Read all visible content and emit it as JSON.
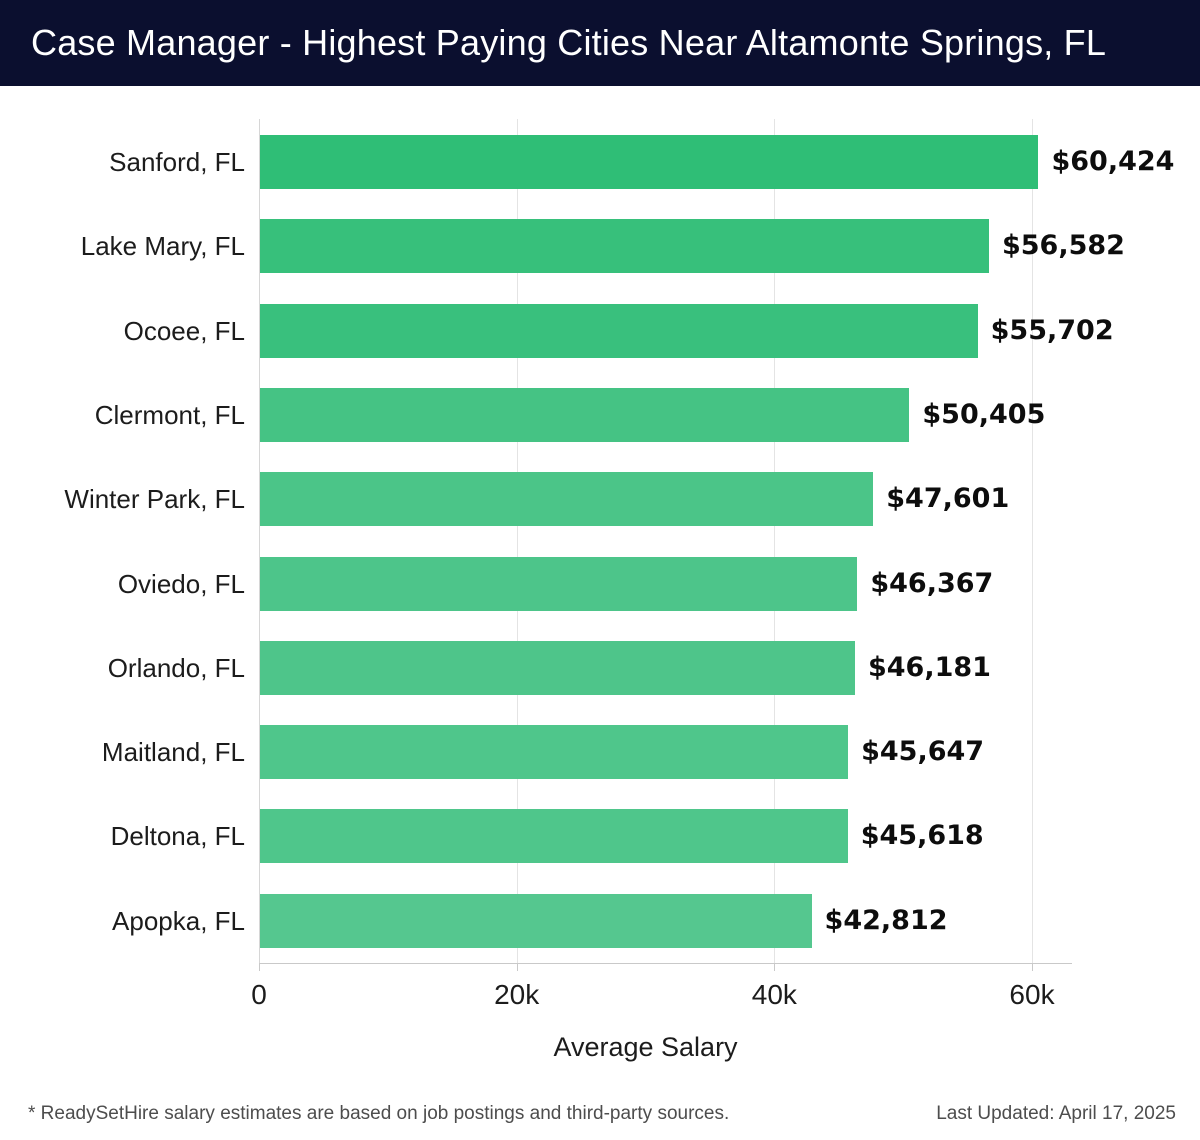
{
  "header": {
    "title": "Case Manager - Highest Paying Cities Near Altamonte Springs, FL"
  },
  "chart_data": {
    "type": "bar",
    "orientation": "horizontal",
    "title": "Case Manager - Highest Paying Cities Near Altamonte Springs, FL",
    "categories": [
      "Sanford, FL",
      "Lake Mary, FL",
      "Ocoee, FL",
      "Clermont, FL",
      "Winter Park, FL",
      "Oviedo, FL",
      "Orlando, FL",
      "Maitland, FL",
      "Deltona, FL",
      "Apopka, FL"
    ],
    "values": [
      60424,
      56582,
      55702,
      50405,
      47601,
      46367,
      46181,
      45647,
      45618,
      42812
    ],
    "value_labels": [
      "$60,424",
      "$56,582",
      "$55,702",
      "$50,405",
      "$47,601",
      "$46,367",
      "$46,181",
      "$45,647",
      "$45,618",
      "$42,812"
    ],
    "bar_colors": [
      "#2fbe76",
      "#37c07b",
      "#39c07d",
      "#45c384",
      "#4bc588",
      "#4dc58a",
      "#4ec58a",
      "#4fc68b",
      "#4fc68b",
      "#55c78f"
    ],
    "xlabel": "Average Salary",
    "ylabel": "",
    "xlim": [
      0,
      63000
    ],
    "x_ticks": [
      {
        "label": "0",
        "value": 0
      },
      {
        "label": "20k",
        "value": 20000
      },
      {
        "label": "40k",
        "value": 40000
      },
      {
        "label": "60k",
        "value": 60000
      }
    ],
    "grid": "vertical-light-gray",
    "legend": "none"
  },
  "colors": {
    "header_bg": "#0b0f2f",
    "header_text": "#ffffff",
    "gridline": "#e4e4e4",
    "axis_line": "#c9c9c9",
    "label_text": "#1c1c1c",
    "value_text": "#0d0d0d",
    "footer_text": "#4d4d4d",
    "background": "#ffffff"
  },
  "footer": {
    "note": "* ReadySetHire salary estimates are based on job postings and third-party sources.",
    "last_updated": "Last Updated: April 17, 2025"
  }
}
